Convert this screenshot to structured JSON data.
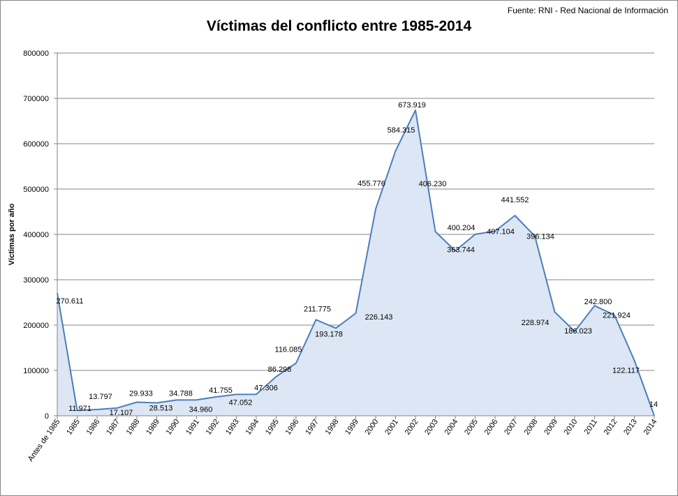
{
  "source": "Fuente: RNI - Red Nacional de Información",
  "chart_data": {
    "type": "area",
    "title": "Víctimas del conflicto entre 1985-2014",
    "xlabel": "",
    "ylabel": "Víctimas por año",
    "ylim": [
      0,
      800000
    ],
    "yticks": [
      0,
      100000,
      200000,
      300000,
      400000,
      500000,
      600000,
      700000,
      800000
    ],
    "ytick_labels": [
      "0",
      "100000",
      "200000",
      "300000",
      "400000",
      "500000",
      "600000",
      "700000",
      "800000"
    ],
    "grid": true,
    "legend": "none",
    "categories": [
      "Antes de 1985",
      "1985",
      "1986",
      "1987",
      "1988",
      "1989",
      "1990",
      "1991",
      "1992",
      "1993",
      "1994",
      "1995",
      "1996",
      "1997",
      "1998",
      "1999",
      "2000",
      "2001",
      "2002",
      "2003",
      "2004",
      "2005",
      "2006",
      "2007",
      "2008",
      "2009",
      "2010",
      "2011",
      "2012",
      "2013",
      "2014"
    ],
    "series": [
      {
        "name": "Víctimas por año",
        "values": [
          270611,
          11971,
          13797,
          17107,
          29933,
          28513,
          34788,
          34960,
          41755,
          47052,
          47306,
          86298,
          116085,
          211775,
          193178,
          226143,
          455776,
          584315,
          673919,
          406230,
          363744,
          400204,
          407104,
          441552,
          396134,
          228974,
          186023,
          242800,
          221924,
          122117,
          14
        ],
        "labels": [
          "270.611",
          "11.971",
          "13.797",
          "17.107",
          "29.933",
          "28.513",
          "34.788",
          "34.960",
          "41.755",
          "47.052",
          "47.306",
          "86.298",
          "116.085",
          "211.775",
          "193.178",
          "226.143",
          "455.776",
          "584.315",
          "673.919",
          "406.230",
          "363.744",
          "400.204",
          "407.104",
          "441.552",
          "396.134",
          "228.974",
          "186.023",
          "242.800",
          "221.924",
          "122.117",
          "14"
        ],
        "line_color": "#4a7ebb",
        "fill_color": "#dce6f4"
      }
    ]
  }
}
